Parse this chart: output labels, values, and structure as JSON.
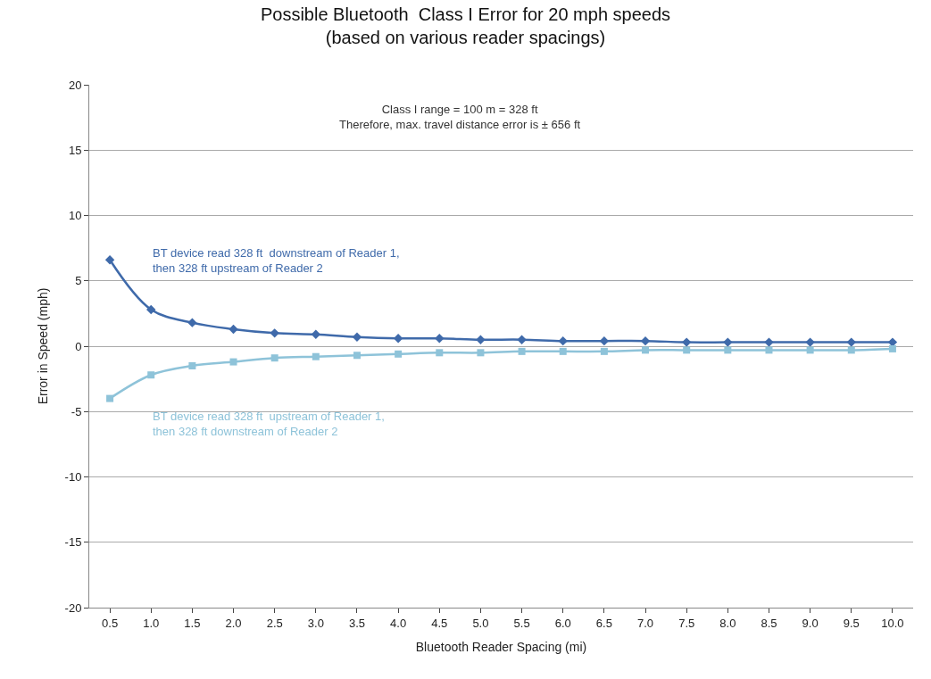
{
  "chart_data": {
    "type": "line",
    "title": "Possible Bluetooth  Class I Error for 20 mph speeds\n(based on various reader spacings)",
    "xlabel": "Bluetooth Reader Spacing (mi)",
    "ylabel": "Error in Speed (mph)",
    "categories": [
      "0.5",
      "1.0",
      "1.5",
      "2.0",
      "2.5",
      "3.0",
      "3.5",
      "4.0",
      "4.5",
      "5.0",
      "5.5",
      "6.0",
      "6.5",
      "7.0",
      "7.5",
      "8.0",
      "8.5",
      "9.0",
      "9.5",
      "10.0"
    ],
    "series": [
      {
        "name": "BT device read 328 ft  downstream of Reader 1,\nthen 328 ft upstream of Reader 2",
        "color": "#3f6aaa",
        "marker": "diamond",
        "values": [
          6.6,
          2.8,
          1.8,
          1.3,
          1.0,
          0.9,
          0.7,
          0.6,
          0.6,
          0.5,
          0.5,
          0.4,
          0.4,
          0.4,
          0.3,
          0.3,
          0.3,
          0.3,
          0.3,
          0.3
        ]
      },
      {
        "name": "BT device read 328 ft  upstream of Reader 1,\nthen 328 ft downstream of Reader 2",
        "color": "#8ec3d9",
        "marker": "square",
        "values": [
          -4.0,
          -2.2,
          -1.5,
          -1.2,
          -0.9,
          -0.8,
          -0.7,
          -0.6,
          -0.5,
          -0.5,
          -0.4,
          -0.4,
          -0.4,
          -0.3,
          -0.3,
          -0.3,
          -0.3,
          -0.3,
          -0.3,
          -0.2
        ]
      }
    ],
    "ylim": [
      -20,
      20
    ],
    "yticks": [
      -20,
      -15,
      -10,
      -5,
      0,
      5,
      10,
      15,
      20
    ],
    "grid": "y",
    "legend": false,
    "annotations": [
      "Class I range = 100 m = 328 ft\nTherefore, max. travel distance error is ± 656 ft"
    ]
  }
}
